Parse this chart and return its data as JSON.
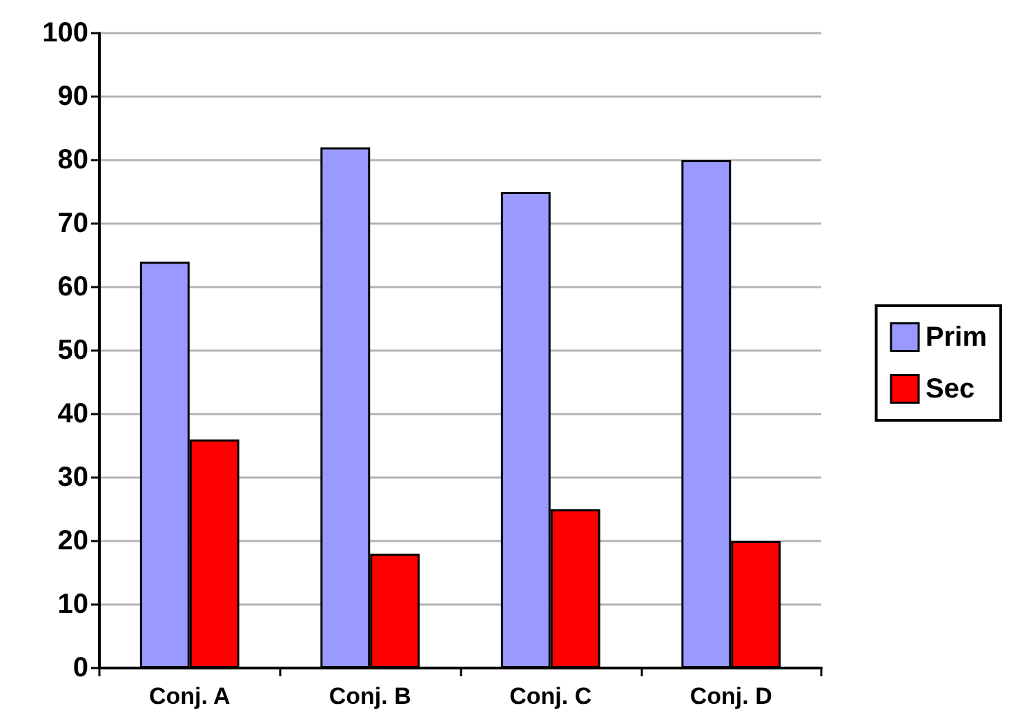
{
  "chart_data": {
    "type": "bar",
    "categories": [
      "Conj. A",
      "Conj. B",
      "Conj. C",
      "Conj. D"
    ],
    "series": [
      {
        "name": "Prim",
        "color": "#9999ff",
        "values": [
          64,
          82,
          75,
          80
        ]
      },
      {
        "name": "Sec",
        "color": "#ff0000",
        "values": [
          36,
          18,
          25,
          20
        ]
      }
    ],
    "ylim": [
      0,
      100
    ],
    "yticks": [
      0,
      10,
      20,
      30,
      40,
      50,
      60,
      70,
      80,
      90,
      100
    ],
    "grid": "y",
    "legend": "right"
  }
}
